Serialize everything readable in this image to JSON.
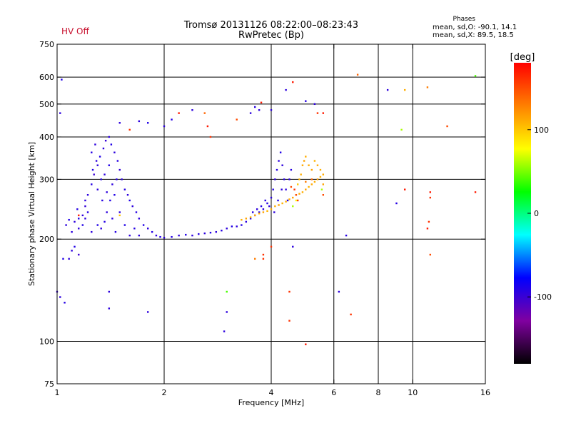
{
  "status_text": "HV Off",
  "title_line1": "Tromsø 20131126 08:22:00–08:23:43",
  "title_line2": "RwPretec (Bp)",
  "phases": {
    "heading": "Phases",
    "mean_sd_o": "mean, sd,O: -90.1, 14.1",
    "mean_sd_x": "mean, sd,X:  89.5, 18.5"
  },
  "colors": {
    "status": "#c8102e",
    "grid": "#000000"
  },
  "chart_data": {
    "type": "scatter",
    "xlabel": "Frequency [MHz]",
    "ylabel": "Stationary phase Virtual Height [km]",
    "xscale": "log",
    "yscale": "log",
    "xlim": [
      1,
      16
    ],
    "ylim": [
      75,
      750
    ],
    "xticks": [
      1,
      2,
      4,
      6,
      8,
      10,
      16
    ],
    "xtick_labels": [
      "1",
      "2",
      "4",
      "6",
      "8",
      "10",
      "16"
    ],
    "x_gridlines": [
      2,
      4,
      6,
      8,
      10
    ],
    "yticks": [
      75,
      100,
      200,
      300,
      400,
      500,
      600,
      750
    ],
    "ytick_labels": [
      "75",
      "100",
      "200",
      "300",
      "400",
      "500",
      "600",
      "750"
    ],
    "y_gridlines": [
      100,
      200,
      300,
      400,
      500,
      600
    ],
    "grid": true,
    "colorbar": {
      "label": "[deg]",
      "range": [
        -180,
        180
      ],
      "ticks": [
        -100,
        0,
        100
      ],
      "tick_labels": [
        "-100",
        "0",
        "100"
      ],
      "colormap": [
        "#000000",
        "#8000a0",
        "#0000ff",
        "#00ffff",
        "#00ff00",
        "#ffff00",
        "#ff8000",
        "#ff0000"
      ]
    },
    "series": [
      {
        "points": [
          [
            1.02,
            470,
            -95
          ],
          [
            1.03,
            590,
            -90
          ],
          [
            1.0,
            140,
            -100
          ],
          [
            1.02,
            135,
            -95
          ],
          [
            1.05,
            130,
            -92
          ],
          [
            1.04,
            175,
            -90
          ],
          [
            1.1,
            185,
            -95
          ],
          [
            1.12,
            190,
            -90
          ],
          [
            1.15,
            180,
            -100
          ],
          [
            1.08,
            175,
            -95
          ],
          [
            1.1,
            210,
            -95
          ],
          [
            1.15,
            230,
            -90
          ],
          [
            1.2,
            250,
            -98
          ],
          [
            1.22,
            270,
            -95
          ],
          [
            1.25,
            290,
            -92
          ],
          [
            1.27,
            310,
            -100
          ],
          [
            1.3,
            330,
            -95
          ],
          [
            1.32,
            350,
            -90
          ],
          [
            1.35,
            370,
            -95
          ],
          [
            1.37,
            390,
            -98
          ],
          [
            1.4,
            400,
            -95
          ],
          [
            1.25,
            360,
            -92
          ],
          [
            1.28,
            380,
            -95
          ],
          [
            1.42,
            380,
            -90
          ],
          [
            1.45,
            360,
            -95
          ],
          [
            1.48,
            340,
            -92
          ],
          [
            1.5,
            320,
            -98
          ],
          [
            1.52,
            300,
            -95
          ],
          [
            1.55,
            280,
            -92
          ],
          [
            1.58,
            270,
            -95
          ],
          [
            1.6,
            260,
            -90
          ],
          [
            1.63,
            250,
            -95
          ],
          [
            1.67,
            240,
            -92
          ],
          [
            1.7,
            230,
            -95
          ],
          [
            1.75,
            220,
            -90
          ],
          [
            1.8,
            215,
            -95
          ],
          [
            1.85,
            210,
            -92
          ],
          [
            1.9,
            205,
            -95
          ],
          [
            1.95,
            203,
            -90
          ],
          [
            2.0,
            202,
            -95
          ],
          [
            2.1,
            203,
            -92
          ],
          [
            2.2,
            205,
            -95
          ],
          [
            2.3,
            206,
            -90
          ],
          [
            2.4,
            205,
            -95
          ],
          [
            2.5,
            207,
            -92
          ],
          [
            2.6,
            208,
            -95
          ],
          [
            2.7,
            209,
            -90
          ],
          [
            2.8,
            210,
            -95
          ],
          [
            2.9,
            212,
            -92
          ],
          [
            3.0,
            215,
            -95
          ],
          [
            3.1,
            218,
            -90
          ],
          [
            1.15,
            215,
            -95
          ],
          [
            1.18,
            220,
            -90
          ],
          [
            1.2,
            230,
            -95
          ],
          [
            1.22,
            240,
            -92
          ],
          [
            1.25,
            210,
            -95
          ],
          [
            1.3,
            220,
            -90
          ],
          [
            1.33,
            215,
            -95
          ],
          [
            1.36,
            225,
            -92
          ],
          [
            1.38,
            240,
            -95
          ],
          [
            1.41,
            260,
            -90
          ],
          [
            1.43,
            230,
            -95
          ],
          [
            1.46,
            210,
            -92
          ],
          [
            1.5,
            240,
            -95
          ],
          [
            1.55,
            220,
            -90
          ],
          [
            1.6,
            205,
            -95
          ],
          [
            1.65,
            215,
            -92
          ],
          [
            1.7,
            205,
            -95
          ],
          [
            1.3,
            280,
            -95
          ],
          [
            1.33,
            300,
            -92
          ],
          [
            1.36,
            310,
            -95
          ],
          [
            1.4,
            330,
            -90
          ],
          [
            1.43,
            290,
            -95
          ],
          [
            1.47,
            300,
            -92
          ],
          [
            1.2,
            260,
            -95
          ],
          [
            1.26,
            320,
            -90
          ],
          [
            1.29,
            340,
            -95
          ],
          [
            1.34,
            260,
            -92
          ],
          [
            1.38,
            275,
            -95
          ],
          [
            1.45,
            270,
            -90
          ],
          [
            1.12,
            225,
            -95
          ],
          [
            1.14,
            245,
            -92
          ],
          [
            1.18,
            235,
            -95
          ],
          [
            1.08,
            228,
            -90
          ],
          [
            1.06,
            220,
            -95
          ],
          [
            3.2,
            218,
            -95
          ],
          [
            3.3,
            220,
            -90
          ],
          [
            3.4,
            225,
            -95
          ],
          [
            3.5,
            230,
            -92
          ],
          [
            3.6,
            235,
            -95
          ],
          [
            3.7,
            240,
            -90
          ],
          [
            3.8,
            245,
            -95
          ],
          [
            3.9,
            255,
            -92
          ],
          [
            4.0,
            265,
            -95
          ],
          [
            4.05,
            280,
            -90
          ],
          [
            4.1,
            300,
            -95
          ],
          [
            4.15,
            320,
            -92
          ],
          [
            4.2,
            340,
            -95
          ],
          [
            4.25,
            360,
            -90
          ],
          [
            4.3,
            330,
            -95
          ],
          [
            4.35,
            300,
            -92
          ],
          [
            4.4,
            280,
            -95
          ],
          [
            4.45,
            260,
            -90
          ],
          [
            4.5,
            300,
            -95
          ],
          [
            4.55,
            320,
            -92
          ],
          [
            3.95,
            250,
            -95
          ],
          [
            3.85,
            260,
            -92
          ],
          [
            3.75,
            250,
            -90
          ],
          [
            3.65,
            245,
            -95
          ],
          [
            3.55,
            240,
            -92
          ],
          [
            4.08,
            240,
            -95
          ],
          [
            4.18,
            260,
            -90
          ],
          [
            4.28,
            280,
            -95
          ],
          [
            3.3,
            228,
            110
          ],
          [
            3.4,
            230,
            115
          ],
          [
            3.5,
            232,
            108
          ],
          [
            3.6,
            235,
            112
          ],
          [
            3.7,
            238,
            110
          ],
          [
            3.8,
            240,
            115
          ],
          [
            3.9,
            242,
            108
          ],
          [
            4.0,
            245,
            112
          ],
          [
            4.1,
            250,
            110
          ],
          [
            4.2,
            252,
            115
          ],
          [
            4.3,
            255,
            108
          ],
          [
            4.4,
            258,
            112
          ],
          [
            4.5,
            262,
            110
          ],
          [
            4.6,
            265,
            115
          ],
          [
            4.7,
            270,
            108
          ],
          [
            4.8,
            272,
            112
          ],
          [
            4.9,
            275,
            110
          ],
          [
            5.0,
            280,
            115
          ],
          [
            5.1,
            285,
            108
          ],
          [
            5.2,
            290,
            112
          ],
          [
            5.3,
            295,
            110
          ],
          [
            5.4,
            300,
            115
          ],
          [
            5.5,
            305,
            108
          ],
          [
            5.6,
            310,
            112
          ],
          [
            4.6,
            250,
            60
          ],
          [
            4.7,
            260,
            80
          ],
          [
            4.75,
            290,
            100
          ],
          [
            4.8,
            300,
            105
          ],
          [
            4.85,
            310,
            110
          ],
          [
            4.9,
            330,
            112
          ],
          [
            4.95,
            340,
            115
          ],
          [
            5.0,
            350,
            110
          ],
          [
            5.1,
            330,
            112
          ],
          [
            5.2,
            320,
            115
          ],
          [
            5.3,
            340,
            108
          ],
          [
            5.4,
            330,
            112
          ],
          [
            5.5,
            320,
            110
          ],
          [
            5.6,
            290,
            115
          ],
          [
            5.55,
            280,
            60
          ],
          [
            5.6,
            270,
            150
          ],
          [
            4.65,
            280,
            160
          ],
          [
            4.7,
            270,
            150
          ],
          [
            4.75,
            260,
            155
          ],
          [
            4.55,
            285,
            150
          ],
          [
            5.2,
            300,
            140
          ],
          [
            5.0,
            295,
            130
          ],
          [
            1.5,
            440,
            -95
          ],
          [
            1.6,
            420,
            160
          ],
          [
            1.7,
            445,
            -95
          ],
          [
            1.8,
            440,
            -90
          ],
          [
            2.0,
            430,
            -95
          ],
          [
            2.1,
            450,
            -92
          ],
          [
            2.2,
            470,
            170
          ],
          [
            2.4,
            480,
            -95
          ],
          [
            2.6,
            470,
            140
          ],
          [
            2.65,
            430,
            170
          ],
          [
            2.7,
            400,
            160
          ],
          [
            3.2,
            450,
            150
          ],
          [
            3.5,
            470,
            -95
          ],
          [
            3.6,
            490,
            -92
          ],
          [
            3.7,
            480,
            -95
          ],
          [
            3.75,
            505,
            170
          ],
          [
            4.0,
            480,
            -95
          ],
          [
            4.4,
            550,
            -95
          ],
          [
            4.6,
            580,
            170
          ],
          [
            5.0,
            510,
            -92
          ],
          [
            5.3,
            500,
            -95
          ],
          [
            5.4,
            470,
            160
          ],
          [
            6.2,
            140,
            -95
          ],
          [
            6.5,
            205,
            -92
          ],
          [
            6.7,
            120,
            160
          ],
          [
            7.0,
            610,
            140
          ],
          [
            8.5,
            550,
            -95
          ],
          [
            9.0,
            255,
            -92
          ],
          [
            9.3,
            420,
            60
          ],
          [
            9.5,
            550,
            110
          ],
          [
            9.5,
            280,
            170
          ],
          [
            11.0,
            560,
            130
          ],
          [
            11.2,
            275,
            170
          ],
          [
            11.2,
            265,
            160
          ],
          [
            11.2,
            180,
            150
          ],
          [
            11.1,
            225,
            160
          ],
          [
            11.0,
            215,
            170
          ],
          [
            12.5,
            430,
            150
          ],
          [
            15.0,
            605,
            40
          ],
          [
            15.0,
            275,
            170
          ],
          [
            3.0,
            140,
            40
          ],
          [
            3.0,
            122,
            -95
          ],
          [
            2.95,
            107,
            -95
          ],
          [
            1.8,
            122,
            -95
          ],
          [
            1.4,
            125,
            -95
          ],
          [
            1.4,
            140,
            -95
          ],
          [
            5.0,
            98,
            170
          ],
          [
            4.5,
            115,
            160
          ],
          [
            4.5,
            140,
            160
          ],
          [
            4.6,
            190,
            -95
          ],
          [
            4.0,
            190,
            160
          ],
          [
            3.8,
            180,
            160
          ],
          [
            3.8,
            175,
            160
          ],
          [
            3.6,
            175,
            130
          ],
          [
            5.6,
            470,
            170
          ],
          [
            1.15,
            235,
            170
          ],
          [
            1.5,
            235,
            100
          ]
        ]
      }
    ]
  }
}
